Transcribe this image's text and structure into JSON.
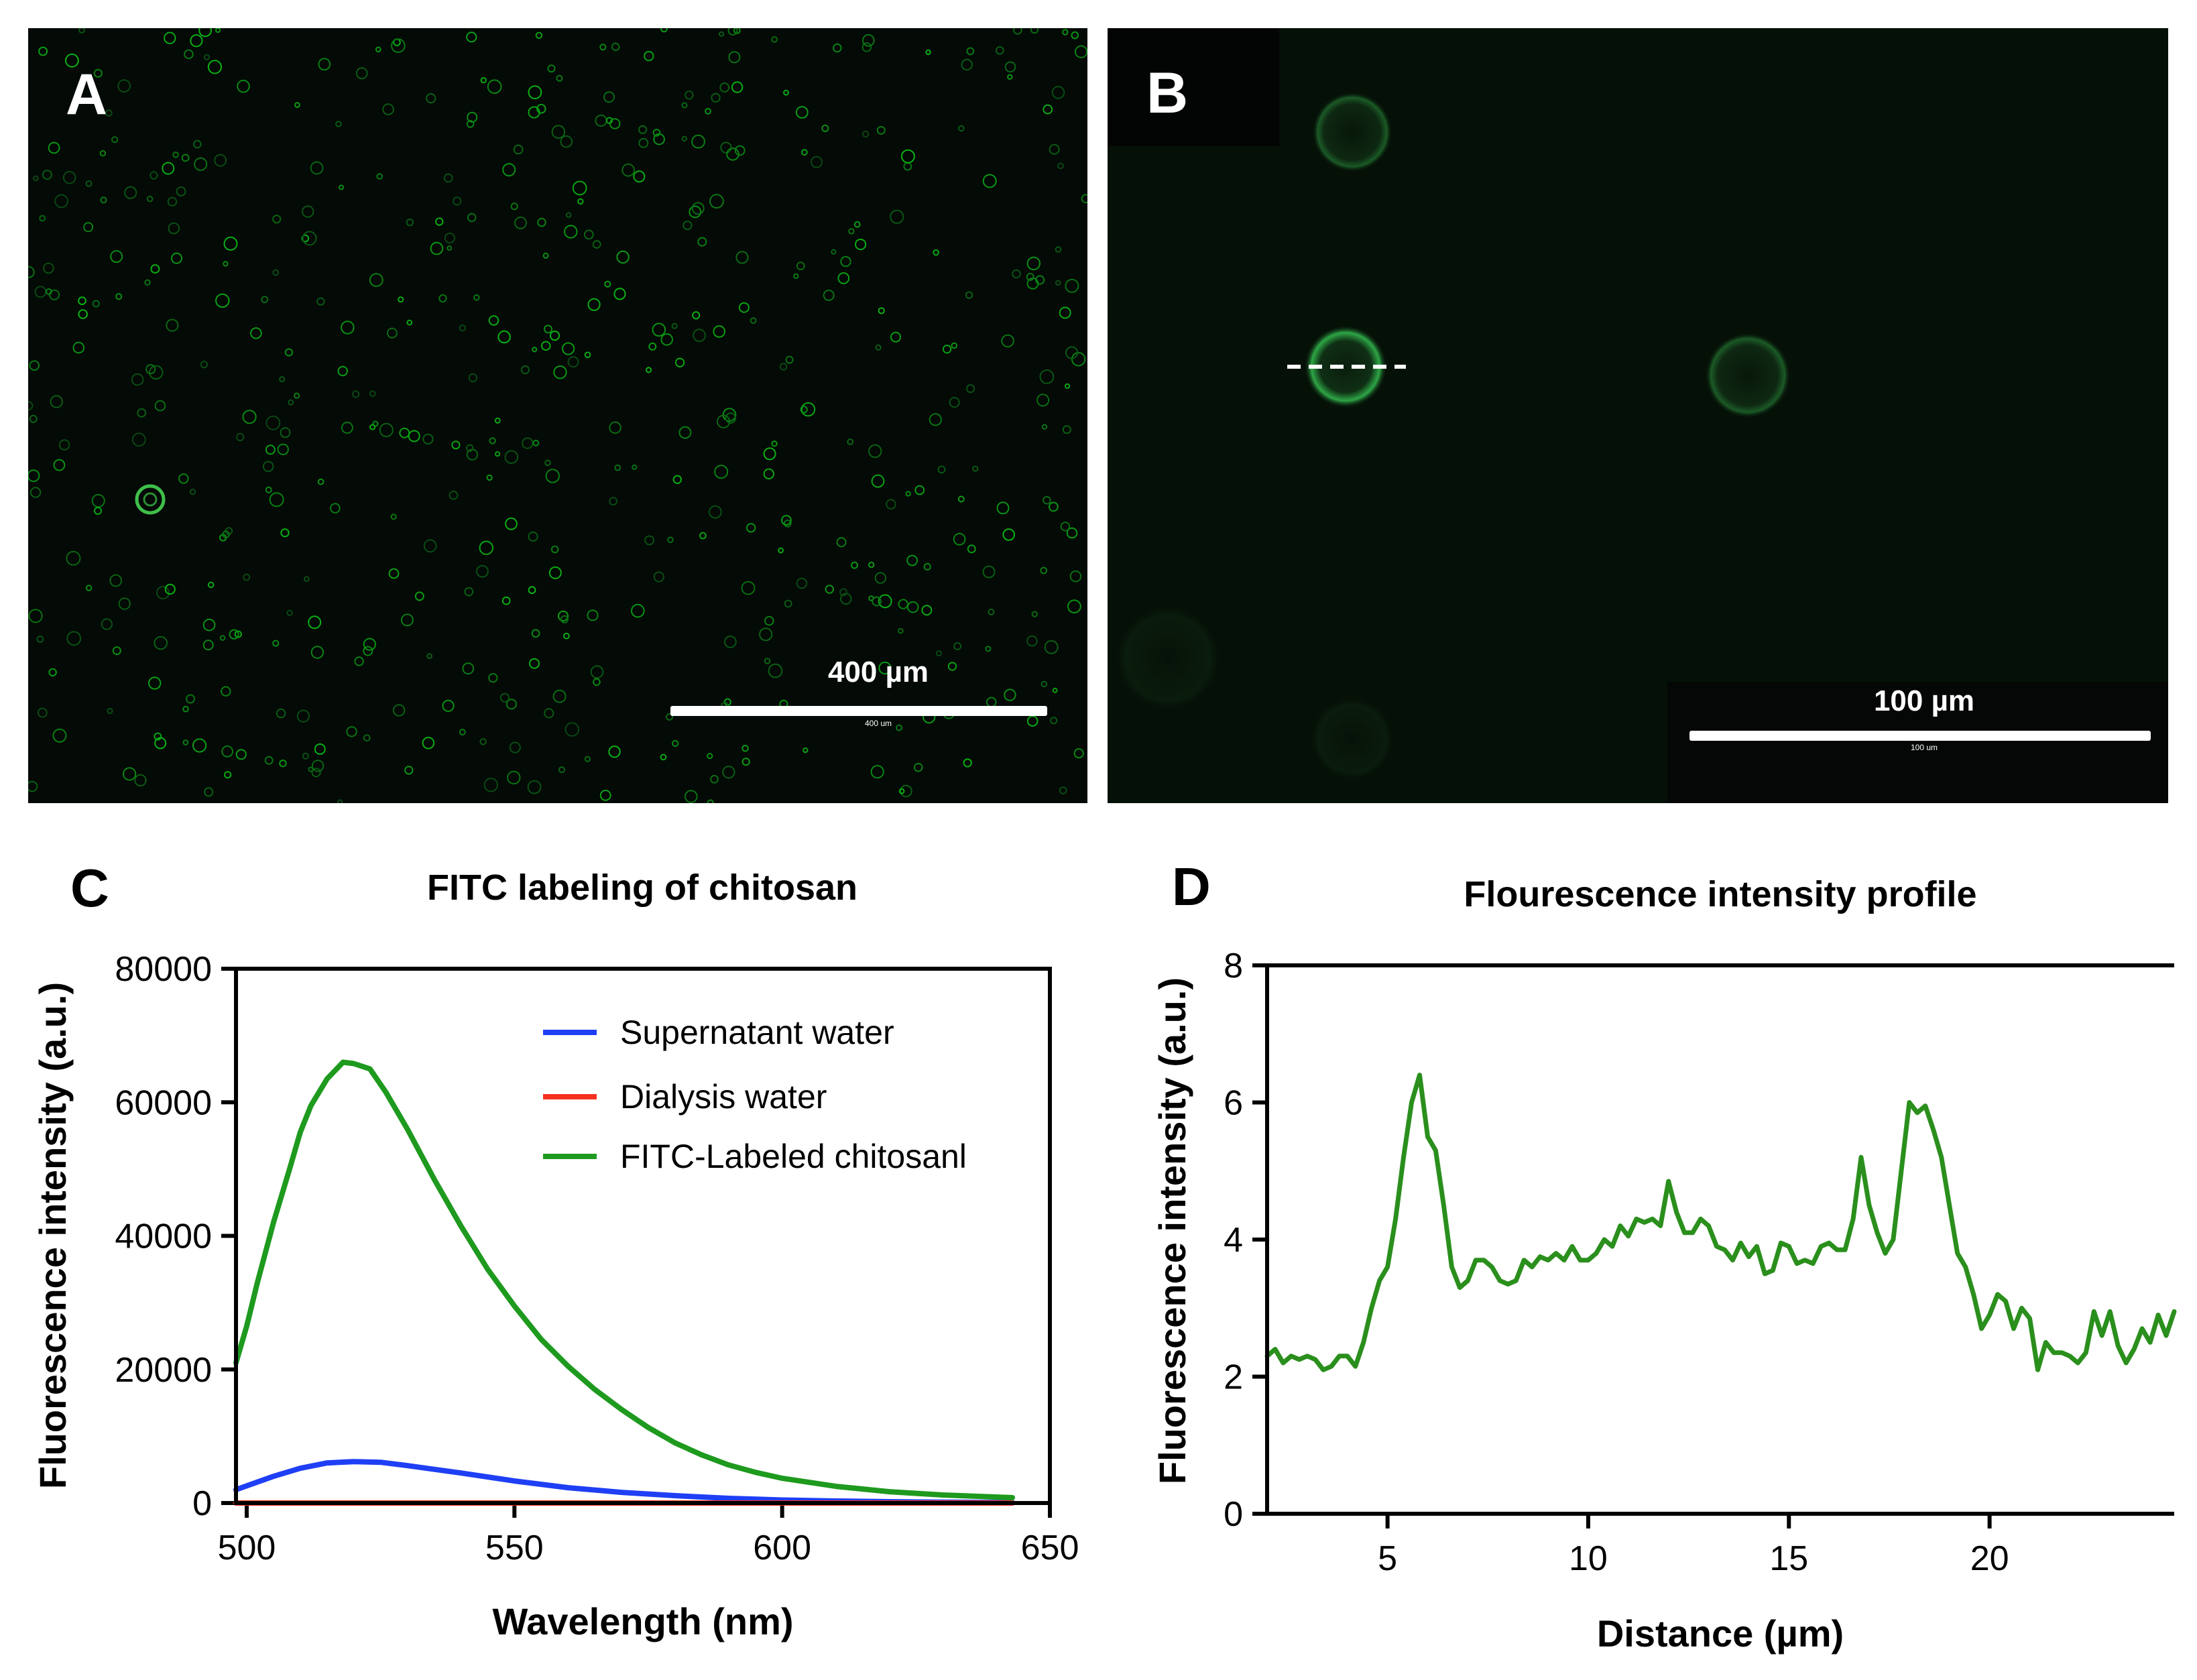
{
  "panels": {
    "a": {
      "letter": "A",
      "scale_label": "400 µm",
      "scale_sublabel": "400 um"
    },
    "b": {
      "letter": "B",
      "scale_label": "100 µm",
      "scale_sublabel": "100 um"
    },
    "c": {
      "letter": "C"
    },
    "d": {
      "letter": "D"
    }
  },
  "colors": {
    "supernatant": "#1f3ff5",
    "dialysis": "#f5301f",
    "fitc": "#1e9a1e",
    "profile": "#2a8f1c"
  },
  "chart_data": [
    {
      "id": "c",
      "type": "line",
      "title": "FITC labeling of chitosan",
      "xlabel": "Wavelength (nm)",
      "ylabel": "Fluorescence intensity (a.u.)",
      "xlim": [
        498,
        650
      ],
      "ylim": [
        0,
        80000
      ],
      "xticks": [
        500,
        550,
        600,
        650
      ],
      "xtick_labels": [
        "500",
        "550",
        "600",
        "650"
      ],
      "yticks": [
        0,
        20000,
        40000,
        60000,
        80000
      ],
      "ytick_labels": [
        "0",
        "20000",
        "40000",
        "60000",
        "80000"
      ],
      "legend_position": "top-right",
      "series": [
        {
          "name": "Supernatant water",
          "color_key": "supernatant",
          "x": [
            498,
            505,
            510,
            515,
            520,
            525,
            530,
            540,
            550,
            560,
            570,
            580,
            590,
            600,
            610,
            620,
            630,
            643
          ],
          "y": [
            2000,
            4000,
            5200,
            6000,
            6200,
            6100,
            5600,
            4500,
            3300,
            2300,
            1600,
            1100,
            700,
            450,
            300,
            200,
            120,
            80
          ]
        },
        {
          "name": "Dialysis water",
          "color_key": "dialysis",
          "x": [
            498,
            643
          ],
          "y": [
            0,
            0
          ]
        },
        {
          "name": "FITC-Labeled chitosanl",
          "color_key": "fitc",
          "x": [
            498,
            500,
            502,
            505,
            508,
            510,
            512,
            515,
            518,
            520,
            523,
            526,
            530,
            535,
            540,
            545,
            550,
            555,
            560,
            565,
            570,
            575,
            580,
            585,
            590,
            595,
            600,
            610,
            620,
            630,
            643
          ],
          "y": [
            21000,
            26500,
            33000,
            42000,
            50000,
            55500,
            59500,
            63500,
            66000,
            65800,
            65000,
            61500,
            56000,
            48500,
            41500,
            35000,
            29500,
            24500,
            20500,
            17000,
            14000,
            11300,
            9000,
            7200,
            5700,
            4600,
            3700,
            2500,
            1700,
            1200,
            800
          ]
        }
      ]
    },
    {
      "id": "d",
      "type": "line",
      "title": "Flourescence intensity profile",
      "xlabel": "Distance (µm)",
      "ylabel": "Fluorescence intensity (a.u.)",
      "xlim": [
        2,
        24.6
      ],
      "ylim": [
        0,
        8
      ],
      "xticks": [
        5,
        10,
        15,
        20
      ],
      "xtick_labels": [
        "5",
        "10",
        "15",
        "20"
      ],
      "yticks": [
        0,
        2,
        4,
        6,
        8
      ],
      "ytick_labels": [
        "0",
        "2",
        "4",
        "6",
        "8"
      ],
      "series": [
        {
          "name": "Intensity",
          "color_key": "profile",
          "x": [
            2.0,
            2.2,
            2.4,
            2.6,
            2.8,
            3.0,
            3.2,
            3.4,
            3.6,
            3.8,
            4.0,
            4.2,
            4.4,
            4.6,
            4.8,
            5.0,
            5.2,
            5.4,
            5.6,
            5.8,
            6.0,
            6.2,
            6.4,
            6.6,
            6.8,
            7.0,
            7.2,
            7.4,
            7.6,
            7.8,
            8.0,
            8.2,
            8.4,
            8.6,
            8.8,
            9.0,
            9.2,
            9.4,
            9.6,
            9.8,
            10.0,
            10.2,
            10.4,
            10.6,
            10.8,
            11.0,
            11.2,
            11.4,
            11.6,
            11.8,
            12.0,
            12.2,
            12.4,
            12.6,
            12.8,
            13.0,
            13.2,
            13.4,
            13.6,
            13.8,
            14.0,
            14.2,
            14.4,
            14.6,
            14.8,
            15.0,
            15.2,
            15.4,
            15.6,
            15.8,
            16.0,
            16.2,
            16.4,
            16.6,
            16.8,
            17.0,
            17.2,
            17.4,
            17.6,
            17.8,
            18.0,
            18.2,
            18.4,
            18.6,
            18.8,
            19.0,
            19.2,
            19.4,
            19.6,
            19.8,
            20.0,
            20.2,
            20.4,
            20.6,
            20.8,
            21.0,
            21.2,
            21.4,
            21.6,
            21.8,
            22.0,
            22.2,
            22.4,
            22.6,
            22.8,
            23.0,
            23.2,
            23.4,
            23.6,
            23.8,
            24.0,
            24.2,
            24.4,
            24.6
          ],
          "y": [
            2.3,
            2.4,
            2.2,
            2.3,
            2.25,
            2.3,
            2.25,
            2.1,
            2.15,
            2.3,
            2.3,
            2.15,
            2.5,
            3.0,
            3.4,
            3.6,
            4.3,
            5.2,
            6.0,
            6.4,
            5.5,
            5.3,
            4.5,
            3.6,
            3.3,
            3.4,
            3.7,
            3.7,
            3.6,
            3.4,
            3.35,
            3.4,
            3.7,
            3.6,
            3.75,
            3.7,
            3.8,
            3.7,
            3.9,
            3.7,
            3.7,
            3.8,
            4.0,
            3.9,
            4.2,
            4.05,
            4.3,
            4.25,
            4.3,
            4.2,
            4.85,
            4.4,
            4.1,
            4.1,
            4.3,
            4.2,
            3.9,
            3.85,
            3.7,
            3.95,
            3.75,
            3.9,
            3.5,
            3.55,
            3.95,
            3.9,
            3.65,
            3.7,
            3.65,
            3.9,
            3.95,
            3.85,
            3.85,
            4.3,
            5.2,
            4.5,
            4.1,
            3.8,
            4.0,
            5.0,
            6.0,
            5.85,
            5.95,
            5.6,
            5.2,
            4.5,
            3.8,
            3.6,
            3.2,
            2.7,
            2.9,
            3.2,
            3.1,
            2.7,
            3.0,
            2.85,
            2.1,
            2.5,
            2.35,
            2.35,
            2.3,
            2.2,
            2.35,
            2.95,
            2.6,
            2.95,
            2.45,
            2.2,
            2.4,
            2.7,
            2.5,
            2.9,
            2.6,
            2.95
          ]
        }
      ]
    }
  ]
}
